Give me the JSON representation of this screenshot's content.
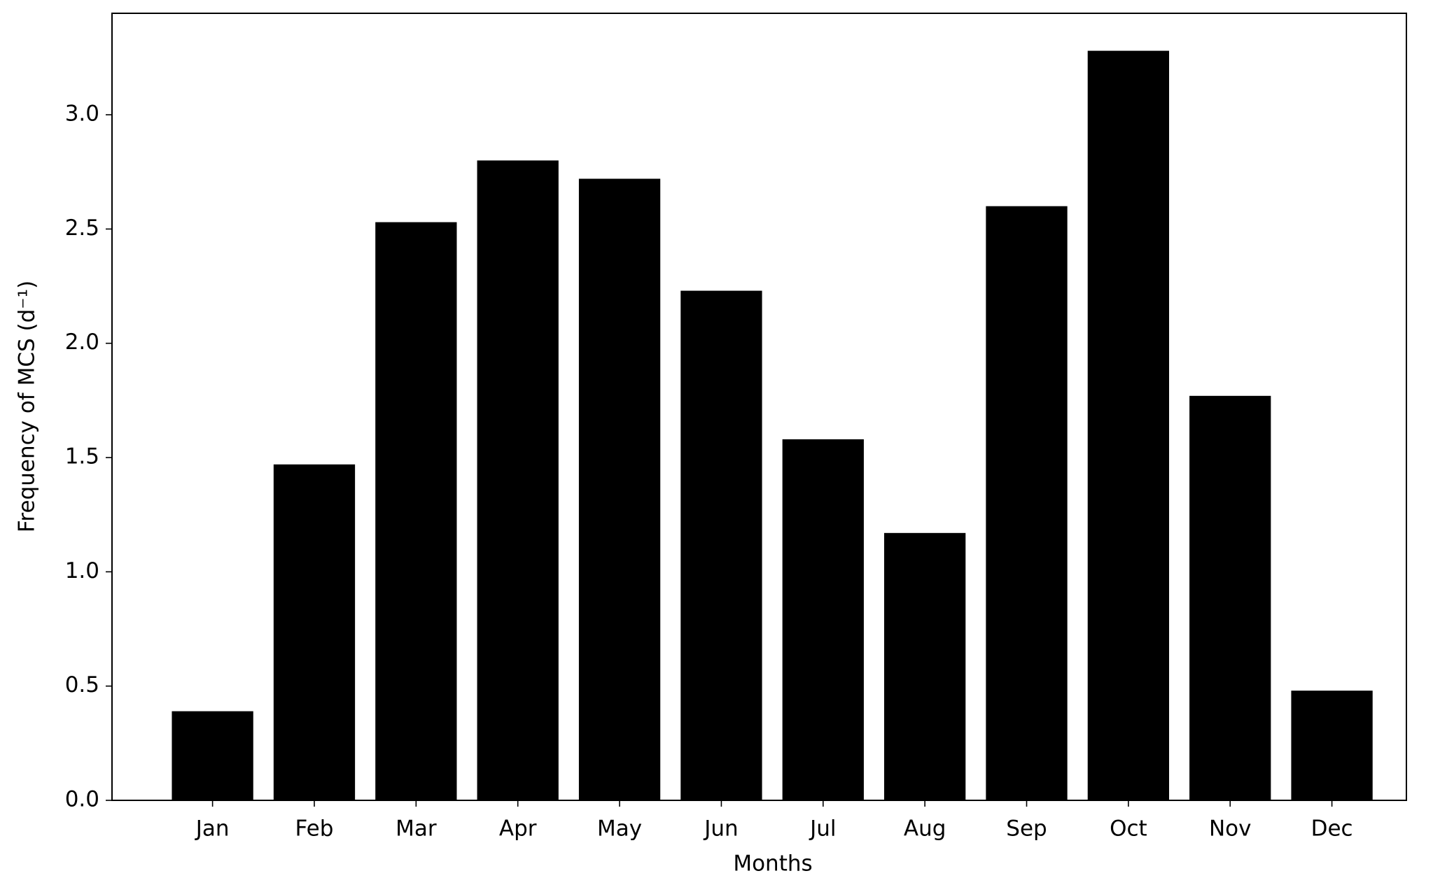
{
  "chart_data": {
    "type": "bar",
    "x_label": "Months",
    "y_label": "Frequency of MCS (d⁻¹)",
    "categories": [
      "Jan",
      "Feb",
      "Mar",
      "Apr",
      "May",
      "Jun",
      "Jul",
      "Aug",
      "Sep",
      "Oct",
      "Nov",
      "Dec"
    ],
    "values": [
      0.39,
      1.47,
      2.53,
      2.8,
      2.72,
      2.23,
      1.58,
      1.17,
      2.6,
      3.28,
      1.77,
      0.48
    ],
    "color": "#000000",
    "ylim": [
      0,
      3.444
    ],
    "yticks": [
      {
        "value": 0,
        "label": "0.0"
      },
      0.5,
      {
        "value": 1,
        "label": "1.0"
      },
      1.5,
      {
        "value": 2,
        "label": "2.0"
      },
      2.5,
      {
        "value": 3,
        "label": "3.0"
      }
    ],
    "grid": false
  }
}
